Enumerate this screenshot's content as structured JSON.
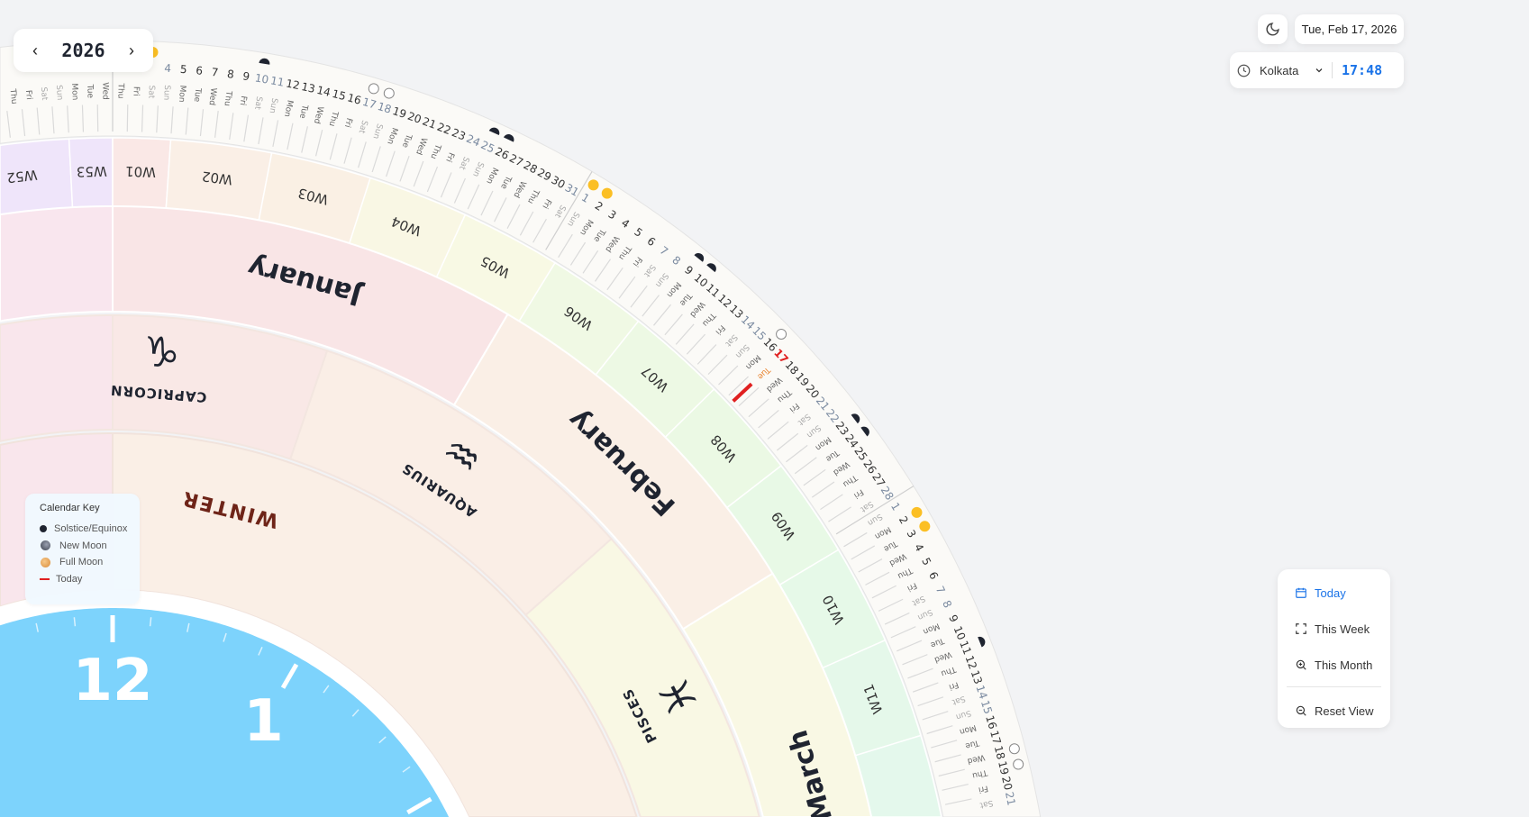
{
  "year_nav": {
    "year": "2026",
    "prev_icon": "chevron-left-icon",
    "next_icon": "chevron-right-icon"
  },
  "header": {
    "theme_icon": "moon-icon",
    "date": "Tue, Feb 17, 2026",
    "timezone": "Kolkata",
    "time": "17:48"
  },
  "view_menu": {
    "today": "Today",
    "this_week": "This Week",
    "this_month": "This Month",
    "reset_view": "Reset View"
  },
  "legend": {
    "title": "Calendar Key",
    "items": [
      {
        "label": "Solstice/Equinox",
        "icon": "solstice-dot-icon"
      },
      {
        "label": "New Moon",
        "icon": "new-moon-icon"
      },
      {
        "label": "Full Moon",
        "icon": "full-moon-icon"
      },
      {
        "label": "Today",
        "icon": "today-line-icon",
        "color": "#e02020"
      }
    ]
  },
  "wheel": {
    "year": 2026,
    "today": "2026-02-17",
    "today_color": "#e02020",
    "weekdays": [
      "Sun",
      "Mon",
      "Tue",
      "Wed",
      "Thu",
      "Fri",
      "Sat"
    ],
    "months": [
      {
        "name": "",
        "start": "2025-12-01",
        "end": "2025-12-31",
        "color": "#f9e6ee"
      },
      {
        "name": "January",
        "start": "2026-01-01",
        "end": "2026-01-31",
        "color": "#f9e5e6"
      },
      {
        "name": "February",
        "start": "2026-02-01",
        "end": "2026-02-28",
        "color": "#faefe6"
      },
      {
        "name": "March",
        "start": "2026-03-01",
        "end": "2026-03-31",
        "color": "#f9f8e4"
      },
      {
        "name": "",
        "start": "2026-04-01",
        "end": "2026-04-30",
        "color": "#eef9e4"
      }
    ],
    "weeks": [
      {
        "label": "W52",
        "start": "2025-12-22",
        "end": "2025-12-28",
        "color": "#efe5fa"
      },
      {
        "label": "W53",
        "start": "2025-12-29",
        "end": "2025-12-31",
        "color": "#efe5fa"
      },
      {
        "label": "W01",
        "start": "2026-01-01",
        "end": "2026-01-04",
        "color": "#fae8e6"
      },
      {
        "label": "W02",
        "start": "2026-01-05",
        "end": "2026-01-11",
        "color": "#faefe6"
      },
      {
        "label": "W03",
        "start": "2026-01-12",
        "end": "2026-01-18",
        "color": "#faf0e4"
      },
      {
        "label": "W04",
        "start": "2026-01-19",
        "end": "2026-01-25",
        "color": "#f9f7e4"
      },
      {
        "label": "W05",
        "start": "2026-01-26",
        "end": "2026-02-01",
        "color": "#f8f9e4"
      },
      {
        "label": "W06",
        "start": "2026-02-02",
        "end": "2026-02-08",
        "color": "#f0f9e4"
      },
      {
        "label": "W07",
        "start": "2026-02-09",
        "end": "2026-02-15",
        "color": "#edf9e4"
      },
      {
        "label": "W08",
        "start": "2026-02-16",
        "end": "2026-02-22",
        "color": "#ebf9e4"
      },
      {
        "label": "W09",
        "start": "2026-02-23",
        "end": "2026-03-01",
        "color": "#e8f9e6"
      },
      {
        "label": "W10",
        "start": "2026-03-02",
        "end": "2026-03-08",
        "color": "#e6f9e8"
      },
      {
        "label": "W11",
        "start": "2026-03-09",
        "end": "2026-03-15",
        "color": "#e5f8ea"
      },
      {
        "label": "",
        "start": "2026-03-16",
        "end": "2026-03-22",
        "color": "#e4f8ec"
      }
    ],
    "zodiac": [
      {
        "name": "",
        "symbol": "",
        "start": "2025-11-22",
        "end": "2025-12-31",
        "color": "#f9e6ec"
      },
      {
        "name": "CAPRICORN",
        "symbol": "♑",
        "start": "2025-12-22",
        "end": "2026-01-19",
        "label_start": "2026-01-01",
        "color": "#f9e8e6"
      },
      {
        "name": "AQUARIUS",
        "symbol": "♒",
        "start": "2026-01-20",
        "end": "2026-02-18",
        "color": "#faeee6"
      },
      {
        "name": "PISCES",
        "symbol": "♓",
        "start": "2026-02-19",
        "end": "2026-03-20",
        "color": "#f9f8e4"
      },
      {
        "name": "",
        "symbol": "",
        "start": "2026-03-21",
        "end": "2026-04-19",
        "color": "#eef9e6"
      }
    ],
    "seasons": [
      {
        "name": "",
        "start": "2025-11-01",
        "end": "2025-12-31",
        "color": "#f9e6ec"
      },
      {
        "name": "WINTER",
        "start": "2026-01-01",
        "end": "2026-03-19",
        "color": "#faefe6",
        "text_color": "#6e2418"
      },
      {
        "name": "",
        "start": "2026-03-20",
        "end": "2026-06-20",
        "color": "#eef9e6"
      }
    ],
    "moon_events": {
      "full_moon": [
        "2026-01-02",
        "2026-01-03",
        "2026-02-01",
        "2026-02-02",
        "2026-03-02",
        "2026-03-03"
      ],
      "quarter": [
        "2026-01-10",
        "2026-01-25",
        "2026-01-26",
        "2026-02-09",
        "2026-02-10",
        "2026-02-23",
        "2026-02-24",
        "2026-03-11"
      ],
      "new_moon": [
        "2026-01-17",
        "2026-01-18",
        "2026-02-16",
        "2026-03-18",
        "2026-03-19"
      ]
    },
    "clock_numbers": [
      {
        "label": "12",
        "hour": 12
      },
      {
        "label": "1",
        "hour": 1
      }
    ],
    "clock_color": "#7dd3fc"
  }
}
